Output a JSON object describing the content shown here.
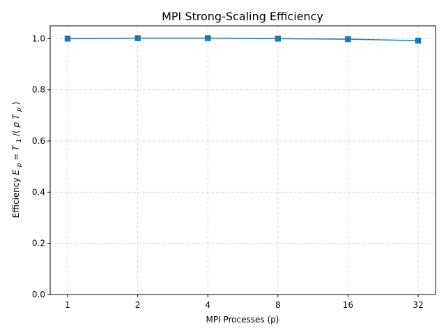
{
  "chart_data": {
    "type": "line",
    "title": "MPI Strong-Scaling Efficiency",
    "xlabel": "MPI Processes (p)",
    "ylabel_prefix": "Efficiency ",
    "ylabel_math": {
      "E": "E",
      "p": "p",
      "eq": " = ",
      "T": "T",
      "one": "1",
      "slash": "/(",
      "p_var": "p",
      "space": " ",
      "close": ")"
    },
    "x_categories": [
      "1",
      "2",
      "4",
      "8",
      "16",
      "32"
    ],
    "x": [
      1,
      2,
      4,
      8,
      16,
      32
    ],
    "x_scale": "log2",
    "ylim": [
      0.0,
      1.05
    ],
    "yticks": [
      0.0,
      0.2,
      0.4,
      0.6,
      0.8,
      1.0
    ],
    "ytick_labels": [
      "0.0",
      "0.2",
      "0.4",
      "0.6",
      "0.8",
      "1.0"
    ],
    "grid": true,
    "series": [
      {
        "values": [
          1.0,
          1.002,
          1.002,
          1.0,
          0.998,
          0.992
        ],
        "color": "#1f77b4",
        "marker": "square"
      }
    ]
  }
}
